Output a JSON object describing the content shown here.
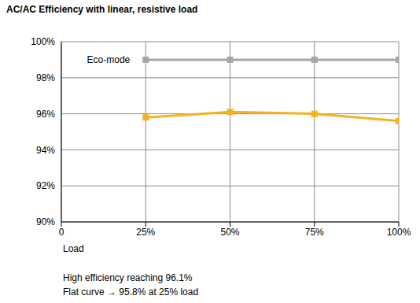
{
  "chart_data": {
    "type": "line",
    "title": "AC/AC Efficiency with linear, resistive load",
    "x_label": "Load",
    "x": [
      25,
      50,
      75,
      100
    ],
    "series": [
      {
        "name": "Eco-mode",
        "color": "#a6a6a6",
        "marker": "square",
        "values": [
          99,
          99,
          99,
          99
        ]
      },
      {
        "color": "#f5b21b",
        "marker": "square",
        "values": [
          95.8,
          96.1,
          96.0,
          95.6
        ]
      }
    ],
    "xlim": [
      0,
      100
    ],
    "xticks": [
      0,
      {
        "value": 25,
        "label": "25%"
      },
      {
        "value": 50,
        "label": "50%"
      },
      {
        "value": 75,
        "label": "75%"
      },
      {
        "value": 100,
        "label": "100%"
      }
    ],
    "ylim": [
      90,
      100
    ],
    "yticks": [
      {
        "value": 90,
        "label": "90%"
      },
      {
        "value": 92,
        "label": "92%"
      },
      {
        "value": 94,
        "label": "94%"
      },
      {
        "value": 96,
        "label": "96%"
      },
      {
        "value": 98,
        "label": "98%"
      },
      {
        "value": 100,
        "label": "100%"
      }
    ],
    "grid": true,
    "annotations": [
      "High efficiency reaching 96.1%",
      "Flat curve → 95.8% at 25% load"
    ]
  }
}
